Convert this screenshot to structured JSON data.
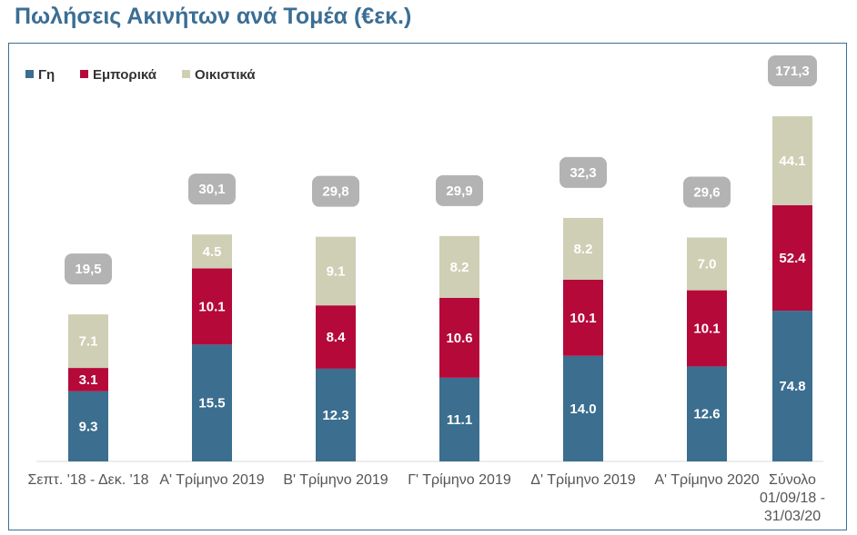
{
  "title": "Πωλήσεις Ακινήτων ανά Τομέα (€εκ.)",
  "colors": {
    "land": "#3b6e8f",
    "commercial": "#b5093a",
    "residential": "#cfcfb5",
    "total_badge": "#b3b3b3",
    "frame": "#3b6e94"
  },
  "chart_data": {
    "type": "bar",
    "stacked": true,
    "title": "Πωλήσεις Ακινήτων ανά Τομέα (€εκ.)",
    "legend_position": "top-left",
    "grid": false,
    "categories": [
      [
        "Σεπτ. '18 - Δεκ. '18"
      ],
      [
        "Α' Τρίμηνο 2019"
      ],
      [
        "Β' Τρίμηνο 2019"
      ],
      [
        "Γ' Τρίμηνο 2019"
      ],
      [
        "Δ' Τρίμηνο 2019"
      ],
      [
        "Α' Τρίμηνο 2020"
      ],
      [
        "Σύνολο",
        "01/09/18 -",
        "31/03/20"
      ]
    ],
    "series": [
      {
        "name": "Γη",
        "color": "#3b6e8f",
        "values": [
          9.3,
          15.5,
          12.3,
          11.1,
          14.0,
          12.6,
          74.8
        ],
        "labels": [
          "9.3",
          "15.5",
          "12.3",
          "11.1",
          "14.0",
          "12.6",
          "74.8"
        ]
      },
      {
        "name": "Εμπορικά",
        "color": "#b5093a",
        "values": [
          3.1,
          10.1,
          8.4,
          10.6,
          10.1,
          10.1,
          52.4
        ],
        "labels": [
          "3.1",
          "10.1",
          "8.4",
          "10.6",
          "10.1",
          "10.1",
          "52.4"
        ]
      },
      {
        "name": "Οικιστικά",
        "color": "#cfcfb5",
        "values": [
          7.1,
          4.5,
          9.1,
          8.2,
          8.2,
          7.0,
          44.1
        ],
        "labels": [
          "7.1",
          "4.5",
          "9.1",
          "8.2",
          "8.2",
          "7.0",
          "44.1"
        ]
      }
    ],
    "totals": [
      19.5,
      30.1,
      29.8,
      29.9,
      32.3,
      29.6,
      171.3
    ],
    "total_labels": [
      "19,5",
      "30,1",
      "29,8",
      "29,9",
      "32,3",
      "29,6",
      "171,3"
    ]
  }
}
